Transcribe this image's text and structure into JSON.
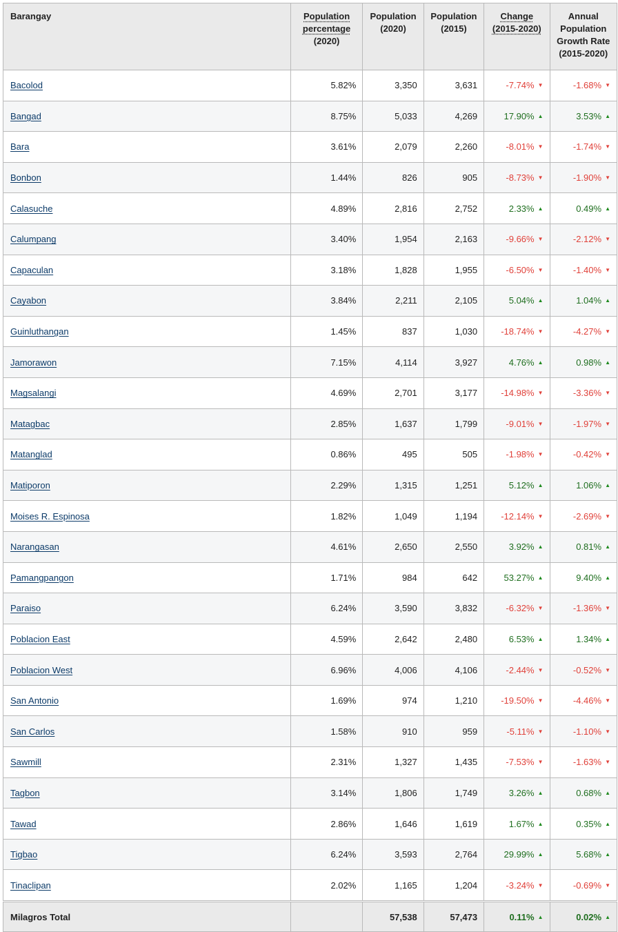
{
  "headers": {
    "barangay": "Barangay",
    "pct": [
      "Population",
      "percentage",
      "(2020)"
    ],
    "pop2020": [
      "Population",
      "(2020)"
    ],
    "pop2015": [
      "Population",
      "(2015)"
    ],
    "change": [
      "Change",
      "(2015-2020)"
    ],
    "growth": [
      "Annual",
      "Population",
      "Growth Rate",
      "(2015-2020)"
    ]
  },
  "colors": {
    "negative": "#e0413a",
    "positive": "#1f6e1f",
    "link": "#0b3a68"
  },
  "rows": [
    {
      "name": "Bacolod",
      "pct": "5.82%",
      "pop2020": "3,350",
      "pop2015": "3,631",
      "change": "-7.74%",
      "growth": "-1.68%",
      "dir": "down"
    },
    {
      "name": "Bangad",
      "pct": "8.75%",
      "pop2020": "5,033",
      "pop2015": "4,269",
      "change": "17.90%",
      "growth": "3.53%",
      "dir": "up"
    },
    {
      "name": "Bara",
      "pct": "3.61%",
      "pop2020": "2,079",
      "pop2015": "2,260",
      "change": "-8.01%",
      "growth": "-1.74%",
      "dir": "down"
    },
    {
      "name": "Bonbon",
      "pct": "1.44%",
      "pop2020": "826",
      "pop2015": "905",
      "change": "-8.73%",
      "growth": "-1.90%",
      "dir": "down"
    },
    {
      "name": "Calasuche",
      "pct": "4.89%",
      "pop2020": "2,816",
      "pop2015": "2,752",
      "change": "2.33%",
      "growth": "0.49%",
      "dir": "up"
    },
    {
      "name": "Calumpang",
      "pct": "3.40%",
      "pop2020": "1,954",
      "pop2015": "2,163",
      "change": "-9.66%",
      "growth": "-2.12%",
      "dir": "down"
    },
    {
      "name": "Capaculan",
      "pct": "3.18%",
      "pop2020": "1,828",
      "pop2015": "1,955",
      "change": "-6.50%",
      "growth": "-1.40%",
      "dir": "down"
    },
    {
      "name": "Cayabon",
      "pct": "3.84%",
      "pop2020": "2,211",
      "pop2015": "2,105",
      "change": "5.04%",
      "growth": "1.04%",
      "dir": "up"
    },
    {
      "name": "Guinluthangan",
      "pct": "1.45%",
      "pop2020": "837",
      "pop2015": "1,030",
      "change": "-18.74%",
      "growth": "-4.27%",
      "dir": "down"
    },
    {
      "name": "Jamorawon",
      "pct": "7.15%",
      "pop2020": "4,114",
      "pop2015": "3,927",
      "change": "4.76%",
      "growth": "0.98%",
      "dir": "up"
    },
    {
      "name": "Magsalangi",
      "pct": "4.69%",
      "pop2020": "2,701",
      "pop2015": "3,177",
      "change": "-14.98%",
      "growth": "-3.36%",
      "dir": "down"
    },
    {
      "name": "Matagbac",
      "pct": "2.85%",
      "pop2020": "1,637",
      "pop2015": "1,799",
      "change": "-9.01%",
      "growth": "-1.97%",
      "dir": "down"
    },
    {
      "name": "Matanglad",
      "pct": "0.86%",
      "pop2020": "495",
      "pop2015": "505",
      "change": "-1.98%",
      "growth": "-0.42%",
      "dir": "down"
    },
    {
      "name": "Matiporon",
      "pct": "2.29%",
      "pop2020": "1,315",
      "pop2015": "1,251",
      "change": "5.12%",
      "growth": "1.06%",
      "dir": "up"
    },
    {
      "name": "Moises R. Espinosa",
      "pct": "1.82%",
      "pop2020": "1,049",
      "pop2015": "1,194",
      "change": "-12.14%",
      "growth": "-2.69%",
      "dir": "down"
    },
    {
      "name": "Narangasan",
      "pct": "4.61%",
      "pop2020": "2,650",
      "pop2015": "2,550",
      "change": "3.92%",
      "growth": "0.81%",
      "dir": "up"
    },
    {
      "name": "Pamangpangon",
      "pct": "1.71%",
      "pop2020": "984",
      "pop2015": "642",
      "change": "53.27%",
      "growth": "9.40%",
      "dir": "up"
    },
    {
      "name": "Paraiso",
      "pct": "6.24%",
      "pop2020": "3,590",
      "pop2015": "3,832",
      "change": "-6.32%",
      "growth": "-1.36%",
      "dir": "down"
    },
    {
      "name": "Poblacion East",
      "pct": "4.59%",
      "pop2020": "2,642",
      "pop2015": "2,480",
      "change": "6.53%",
      "growth": "1.34%",
      "dir": "up"
    },
    {
      "name": "Poblacion West",
      "pct": "6.96%",
      "pop2020": "4,006",
      "pop2015": "4,106",
      "change": "-2.44%",
      "growth": "-0.52%",
      "dir": "down"
    },
    {
      "name": "San Antonio",
      "pct": "1.69%",
      "pop2020": "974",
      "pop2015": "1,210",
      "change": "-19.50%",
      "growth": "-4.46%",
      "dir": "down"
    },
    {
      "name": "San Carlos",
      "pct": "1.58%",
      "pop2020": "910",
      "pop2015": "959",
      "change": "-5.11%",
      "growth": "-1.10%",
      "dir": "down"
    },
    {
      "name": "Sawmill",
      "pct": "2.31%",
      "pop2020": "1,327",
      "pop2015": "1,435",
      "change": "-7.53%",
      "growth": "-1.63%",
      "dir": "down"
    },
    {
      "name": "Tagbon",
      "pct": "3.14%",
      "pop2020": "1,806",
      "pop2015": "1,749",
      "change": "3.26%",
      "growth": "0.68%",
      "dir": "up"
    },
    {
      "name": "Tawad",
      "pct": "2.86%",
      "pop2020": "1,646",
      "pop2015": "1,619",
      "change": "1.67%",
      "growth": "0.35%",
      "dir": "up"
    },
    {
      "name": "Tigbao",
      "pct": "6.24%",
      "pop2020": "3,593",
      "pop2015": "2,764",
      "change": "29.99%",
      "growth": "5.68%",
      "dir": "up"
    },
    {
      "name": "Tinaclipan",
      "pct": "2.02%",
      "pop2020": "1,165",
      "pop2015": "1,204",
      "change": "-3.24%",
      "growth": "-0.69%",
      "dir": "down"
    }
  ],
  "total": {
    "name": "Milagros Total",
    "pct": "",
    "pop2020": "57,538",
    "pop2015": "57,473",
    "change": "0.11%",
    "growth": "0.02%",
    "dir": "up"
  }
}
